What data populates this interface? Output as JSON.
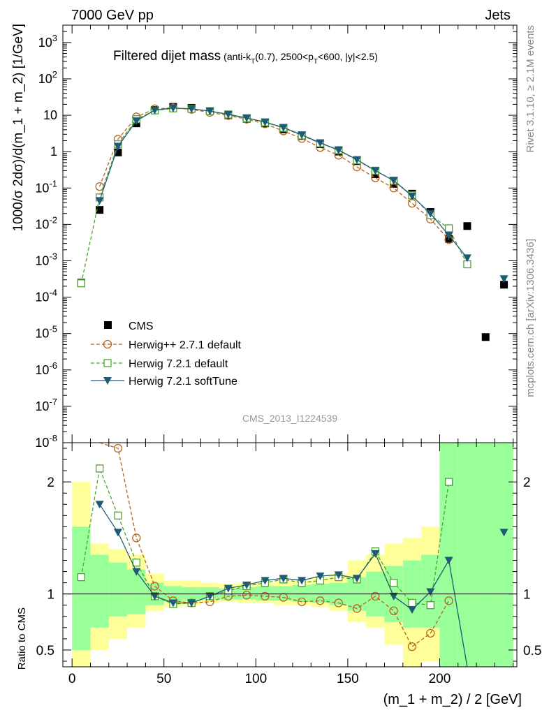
{
  "header": {
    "left": "7000 GeV pp",
    "right": "Jets"
  },
  "title": "Filtered dijet mass",
  "title_sub": {
    "pre": "(anti-k",
    "sub1": "T",
    "mid": "(0.7), 2500<p",
    "sub2": "T",
    "post": "<600, |y|<2.5)"
  },
  "side_label_top": "Rivet 3.1.10, ≥ 2.1M events",
  "side_label_bottom": "mcplots.cern.ch [arXiv:1306.3436]",
  "watermark": "CMS_2013_I1224539",
  "ylabel_main": "1000/σ 2dσ)/d(m_1 + m_2) [1/GeV]",
  "ylabel_ratio": "Ratio to CMS",
  "xlabel": "(m_1 + m_2) / 2 [GeV]",
  "colors": {
    "cms": "#000000",
    "herwigpp": "#b5651d",
    "herwig_default": "#4ca42c",
    "herwig_soft": "#1f5b73",
    "band_outer": "#ffff99",
    "band_inner": "#99ff99"
  },
  "chart_data": [
    {
      "type": "line",
      "panel": "main",
      "yscale": "log",
      "xlim": [
        -5,
        242
      ],
      "ylim": [
        1e-08,
        3000
      ],
      "x_ticks": [
        0,
        50,
        100,
        150,
        200
      ],
      "y_ticks": [
        {
          "value": 1e-08,
          "base": "10",
          "exp": "-8"
        },
        {
          "value": 1e-07,
          "base": "10",
          "exp": "-7"
        },
        {
          "value": 1e-06,
          "base": "10",
          "exp": "-6"
        },
        {
          "value": 1e-05,
          "base": "10",
          "exp": "-5"
        },
        {
          "value": 0.0001,
          "base": "10",
          "exp": "-4"
        },
        {
          "value": 0.001,
          "base": "10",
          "exp": "-3"
        },
        {
          "value": 0.01,
          "base": "10",
          "exp": "-2"
        },
        {
          "value": 0.1,
          "base": "10",
          "exp": "-1"
        },
        {
          "value": 1,
          "base": "1",
          "exp": ""
        },
        {
          "value": 10,
          "base": "10",
          "exp": ""
        },
        {
          "value": 100,
          "base": "10",
          "exp": "2"
        },
        {
          "value": 1000,
          "base": "10",
          "exp": "3"
        }
      ],
      "legend_position": "bottom-left",
      "x": [
        5,
        15,
        25,
        35,
        45,
        55,
        65,
        75,
        85,
        95,
        105,
        115,
        125,
        135,
        145,
        155,
        165,
        175,
        185,
        195,
        205,
        215,
        225,
        235
      ],
      "series": [
        {
          "name": "CMS",
          "key": "cms",
          "marker": "square-filled",
          "values": [
            0.00025,
            0.025,
            0.95,
            6.0,
            14.0,
            17.0,
            16.0,
            13.0,
            10.0,
            8.0,
            6.0,
            4.1,
            2.7,
            1.6,
            1.0,
            0.55,
            0.24,
            0.13,
            0.07,
            0.022,
            0.004,
            0.009,
            8e-06,
            0.00022
          ]
        },
        {
          "name": "Herwig++ 2.7.1 default",
          "key": "herwigpp",
          "marker": "circle-open",
          "dash": "5,3",
          "values": [
            null,
            0.11,
            2.2,
            9.0,
            15.0,
            16.0,
            14.5,
            12.0,
            9.8,
            7.8,
            5.8,
            3.7,
            2.3,
            1.3,
            0.8,
            0.38,
            0.19,
            0.1,
            0.038,
            0.014,
            0.0038,
            null,
            null,
            null
          ]
        },
        {
          "name": "Herwig 7.2.1 default",
          "key": "herwig_default",
          "marker": "square-open",
          "dash": "5,3",
          "values": [
            0.00024,
            0.055,
            1.6,
            7.8,
            13.6,
            15.5,
            15.0,
            13.0,
            10.5,
            8.3,
            6.4,
            4.5,
            2.8,
            1.7,
            1.1,
            0.58,
            0.3,
            0.16,
            0.063,
            0.018,
            0.0078,
            0.0008,
            null,
            null
          ]
        },
        {
          "name": "Herwig 7.2.1 softTune",
          "key": "herwig_soft",
          "marker": "triangle-down",
          "dash": "",
          "values": [
            null,
            0.045,
            1.4,
            7.0,
            13.8,
            15.8,
            15.0,
            13.0,
            10.6,
            8.4,
            6.5,
            4.6,
            2.9,
            1.75,
            1.1,
            0.6,
            0.3,
            0.16,
            0.06,
            0.02,
            0.005,
            0.0012,
            null,
            0.00032
          ]
        }
      ]
    },
    {
      "type": "line",
      "panel": "ratio",
      "xlim": [
        -5,
        242
      ],
      "ylim": [
        0.35,
        2.35
      ],
      "y_ticks": [
        0.5,
        1,
        2
      ],
      "bins": [
        [
          0,
          10
        ],
        [
          10,
          20
        ],
        [
          20,
          30
        ],
        [
          30,
          40
        ],
        [
          40,
          50
        ],
        [
          50,
          60
        ],
        [
          60,
          70
        ],
        [
          70,
          80
        ],
        [
          80,
          90
        ],
        [
          90,
          100
        ],
        [
          100,
          110
        ],
        [
          110,
          120
        ],
        [
          120,
          130
        ],
        [
          130,
          140
        ],
        [
          140,
          150
        ],
        [
          150,
          160
        ],
        [
          160,
          170
        ],
        [
          170,
          180
        ],
        [
          180,
          190
        ],
        [
          190,
          200
        ],
        [
          200,
          210
        ],
        [
          210,
          220
        ],
        [
          220,
          230
        ],
        [
          230,
          240
        ]
      ],
      "band_outer": [
        [
          0.3,
          2.0
        ],
        [
          0.5,
          1.45
        ],
        [
          0.6,
          1.4
        ],
        [
          0.7,
          1.35
        ],
        [
          0.85,
          1.18
        ],
        [
          0.88,
          1.12
        ],
        [
          0.9,
          1.12
        ],
        [
          0.92,
          1.1
        ],
        [
          0.93,
          1.09
        ],
        [
          0.92,
          1.1
        ],
        [
          0.92,
          1.1
        ],
        [
          0.9,
          1.12
        ],
        [
          0.9,
          1.12
        ],
        [
          0.88,
          1.15
        ],
        [
          0.85,
          1.18
        ],
        [
          0.75,
          1.3
        ],
        [
          0.7,
          1.35
        ],
        [
          0.55,
          1.45
        ],
        [
          0.3,
          1.5
        ],
        [
          0.4,
          1.6
        ],
        [
          0.3,
          2.35
        ],
        [
          0.3,
          2.35
        ],
        [
          0.3,
          2.35
        ],
        [
          0.3,
          2.35
        ]
      ],
      "band_inner": [
        [
          0.5,
          1.6
        ],
        [
          0.7,
          1.35
        ],
        [
          0.8,
          1.28
        ],
        [
          0.82,
          1.22
        ],
        [
          0.9,
          1.1
        ],
        [
          0.93,
          1.07
        ],
        [
          0.94,
          1.06
        ],
        [
          0.95,
          1.06
        ],
        [
          0.95,
          1.05
        ],
        [
          0.95,
          1.06
        ],
        [
          0.94,
          1.07
        ],
        [
          0.94,
          1.07
        ],
        [
          0.93,
          1.08
        ],
        [
          0.92,
          1.09
        ],
        [
          0.9,
          1.1
        ],
        [
          0.85,
          1.15
        ],
        [
          0.8,
          1.2
        ],
        [
          0.75,
          1.25
        ],
        [
          0.7,
          1.3
        ],
        [
          0.7,
          1.35
        ],
        [
          0.3,
          2.35
        ],
        [
          0.3,
          2.35
        ],
        [
          0.3,
          2.35
        ],
        [
          0.3,
          2.35
        ]
      ],
      "x": [
        5,
        15,
        25,
        35,
        45,
        55,
        65,
        75,
        85,
        95,
        105,
        115,
        125,
        135,
        145,
        155,
        165,
        175,
        185,
        195,
        205,
        215,
        225,
        235
      ],
      "series": [
        {
          "name": "Herwig++ 2.7.1 default",
          "key": "herwigpp",
          "marker": "circle-open",
          "dash": "5,3",
          "values": [
            null,
            2.6,
            2.3,
            1.5,
            1.07,
            0.94,
            0.92,
            0.93,
            0.98,
            0.99,
            0.98,
            0.97,
            0.93,
            0.94,
            0.92,
            0.87,
            0.98,
            0.85,
            0.53,
            0.65,
            0.94,
            null,
            null,
            null
          ]
        },
        {
          "name": "Herwig 7.2.1 default",
          "key": "herwig_default",
          "marker": "square-open",
          "dash": "5,3",
          "values": [
            1.15,
            2.12,
            1.7,
            1.28,
            0.98,
            0.91,
            0.92,
            0.98,
            1.03,
            1.07,
            1.1,
            1.13,
            1.1,
            1.12,
            1.15,
            1.13,
            1.38,
            1.1,
            0.92,
            0.9,
            2.0,
            null,
            null,
            null
          ]
        },
        {
          "name": "Herwig 7.2.1 softTune",
          "key": "herwig_soft",
          "marker": "triangle-down",
          "dash": "",
          "values": [
            null,
            1.8,
            1.55,
            1.2,
            0.98,
            0.92,
            0.92,
            0.98,
            1.05,
            1.08,
            1.12,
            1.14,
            1.12,
            1.16,
            1.17,
            1.14,
            1.36,
            0.98,
            0.86,
            1.02,
            1.3,
            0.2,
            null,
            1.55
          ]
        }
      ]
    }
  ]
}
